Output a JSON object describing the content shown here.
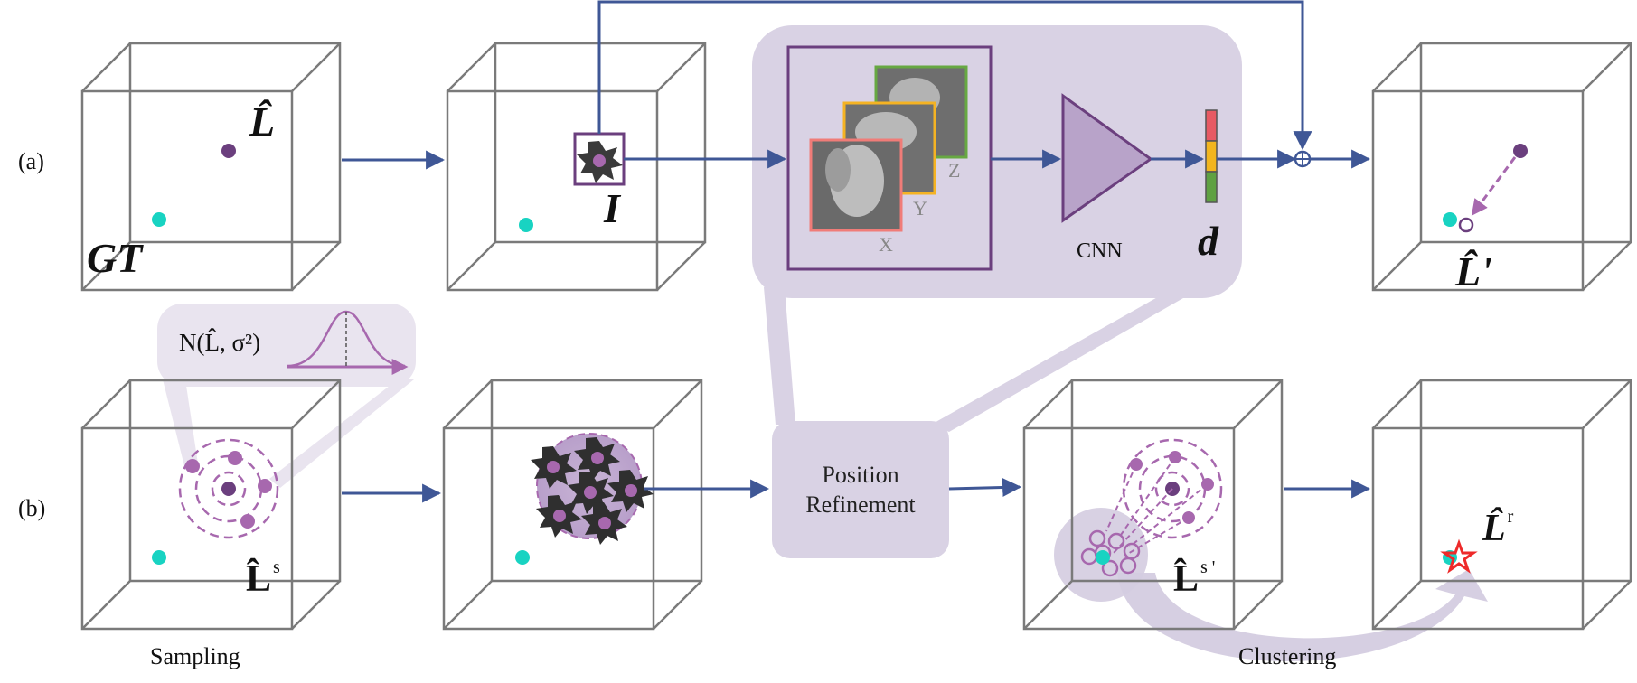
{
  "rows": [
    {
      "label": "(a)"
    },
    {
      "label": "(b)"
    }
  ],
  "labels": {
    "gt": "GT",
    "l_hat": "L̂",
    "image": "I",
    "l_hat_prime": "L̂'",
    "vector_d": "d",
    "cnn": "CNN",
    "axis_x": "X",
    "axis_y": "Y",
    "axis_z": "Z",
    "l_hat_s": "L̂",
    "l_hat_s_sup": "s",
    "l_hat_s_prime": "L̂",
    "l_hat_s_prime_sup": "s '",
    "l_hat_r": "L̂",
    "l_hat_r_sup": "r",
    "normal_dist": "N(L̂, σ²)",
    "position_refinement_line1": "Position",
    "position_refinement_line2": "Refinement",
    "sampling": "Sampling",
    "clustering": "Clustering"
  },
  "colors": {
    "cube_edge": "#7a7a7a",
    "arrow": "#3f5796",
    "landmark_predicted": "#6b3f7e",
    "landmark_ground_truth": "#18d3c2",
    "sample_point": "#a768ae",
    "panel_fill": "#d9d2e4",
    "frame_border": "#6b3f7e",
    "cnn_fill": "#b8a3c9",
    "slice_x_border": "#f07c78",
    "slice_y_border": "#f5b323",
    "slice_z_border": "#67a842",
    "vector_red": "#e85a63",
    "vector_yellow": "#f2b51e",
    "vector_green": "#5fa142",
    "refined_star": "#ee2a2a"
  }
}
